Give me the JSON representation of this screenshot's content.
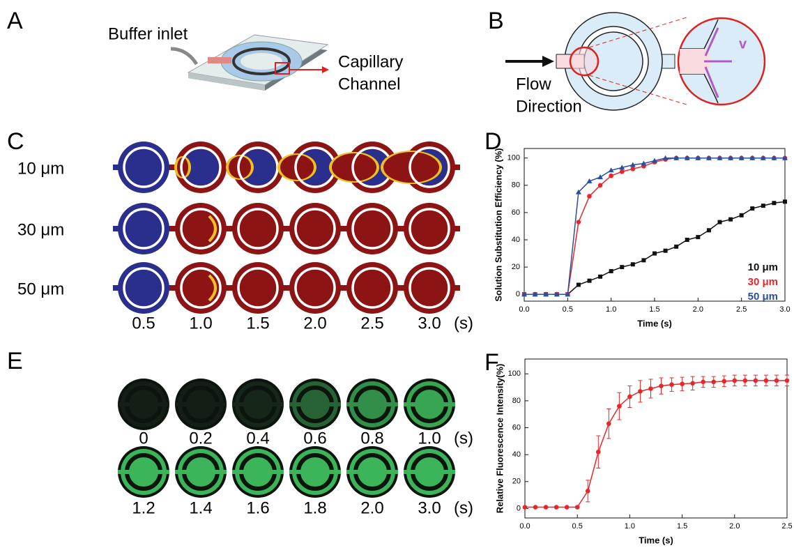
{
  "panel_labels": [
    "A",
    "B",
    "C",
    "D",
    "E",
    "F"
  ],
  "panel_a": {
    "inlet_label": "Buffer inlet",
    "channel_label": [
      "Capillary",
      "Channel"
    ]
  },
  "panel_b": {
    "flow_label": [
      "Flow",
      "Direction"
    ],
    "velocity_label": "v"
  },
  "panel_c": {
    "rows": [
      "10 μm",
      "30 μm",
      "50 μm"
    ],
    "times": [
      "0.5",
      "1.0",
      "1.5",
      "2.0",
      "2.5",
      "3.0"
    ],
    "unit": "(s)"
  },
  "panel_e": {
    "times_row1": [
      "0",
      "0.2",
      "0.4",
      "0.6",
      "0.8",
      "1.0"
    ],
    "times_row2": [
      "1.2",
      "1.4",
      "1.6",
      "1.8",
      "2.0",
      "3.0"
    ],
    "unit": "(s)"
  },
  "chart_data": [
    {
      "type": "line",
      "x_label": "Time (s)",
      "y_label": "Solution Substitution Efficiency (%)",
      "x": [
        0,
        0.125,
        0.25,
        0.375,
        0.5,
        0.625,
        0.75,
        0.875,
        1,
        1.125,
        1.25,
        1.375,
        1.5,
        1.625,
        1.75,
        1.875,
        2,
        2.125,
        2.25,
        2.375,
        2.5,
        2.625,
        2.75,
        2.875,
        3
      ],
      "series": [
        {
          "name": "10 μm",
          "color": "#111111",
          "marker": "square",
          "values": [
            0,
            0,
            0,
            0,
            0,
            7,
            10,
            13,
            17,
            20,
            22,
            25,
            30,
            32,
            35,
            40,
            42,
            47,
            53,
            55,
            58,
            63,
            65,
            67,
            68
          ]
        },
        {
          "name": "30 μm",
          "color": "#e8262a",
          "marker": "circle",
          "values": [
            0,
            0,
            0,
            0,
            0,
            53,
            72,
            80,
            87,
            90,
            92,
            94,
            97,
            99,
            100,
            100,
            100,
            100,
            100,
            100,
            100,
            100,
            100,
            100,
            100
          ]
        },
        {
          "name": "50 μm",
          "color": "#2a4ea0",
          "marker": "triangle",
          "values": [
            0,
            0,
            0,
            0,
            0,
            75,
            83,
            86,
            91,
            93,
            95,
            96,
            98,
            100,
            100,
            100,
            100,
            100,
            100,
            100,
            100,
            100,
            100,
            100,
            100
          ]
        }
      ],
      "xlim": [
        0,
        3
      ],
      "ylim": [
        -5,
        107
      ],
      "xticks": [
        {
          "value": 0,
          "label": "0.0"
        },
        0.5,
        {
          "value": 1,
          "label": "1.0"
        },
        1.5,
        {
          "value": 2,
          "label": "2.0"
        },
        2.5,
        {
          "value": 3,
          "label": "3.0"
        }
      ],
      "yticks": [
        0,
        20,
        40,
        60,
        80,
        100
      ],
      "legend": "lower right"
    },
    {
      "type": "line",
      "x_label": "Time (s)",
      "y_label": "Relative Fluorescence Intensity(%)",
      "x": [
        0,
        0.1,
        0.2,
        0.3,
        0.4,
        0.5,
        0.6,
        0.7,
        0.8,
        0.9,
        1,
        1.1,
        1.2,
        1.3,
        1.4,
        1.5,
        1.6,
        1.7,
        1.8,
        1.9,
        2,
        2.1,
        2.2,
        2.3,
        2.4,
        2.5
      ],
      "series": [
        {
          "color": "#e8262a",
          "marker": "circle",
          "values": [
            1,
            1,
            1,
            1,
            1,
            1,
            13,
            42,
            63,
            76,
            83,
            87,
            89,
            91,
            92,
            92.5,
            93,
            94,
            94,
            94.5,
            95,
            95,
            95,
            95,
            95,
            95
          ],
          "errors": [
            0,
            0,
            0,
            0,
            0,
            0,
            8,
            12,
            11,
            10,
            8,
            8,
            7,
            6,
            5,
            5,
            5,
            4,
            4,
            4,
            4,
            4,
            4,
            4,
            4,
            4
          ]
        }
      ],
      "xlim": [
        0,
        2.5
      ],
      "ylim": [
        -7,
        111
      ],
      "xticks": [
        {
          "value": 0,
          "label": "0.0"
        },
        0.5,
        {
          "value": 1,
          "label": "1.0"
        },
        1.5,
        {
          "value": 2,
          "label": "2.0"
        },
        2.5
      ],
      "yticks": [
        0,
        20,
        40,
        60,
        80,
        100
      ]
    }
  ]
}
